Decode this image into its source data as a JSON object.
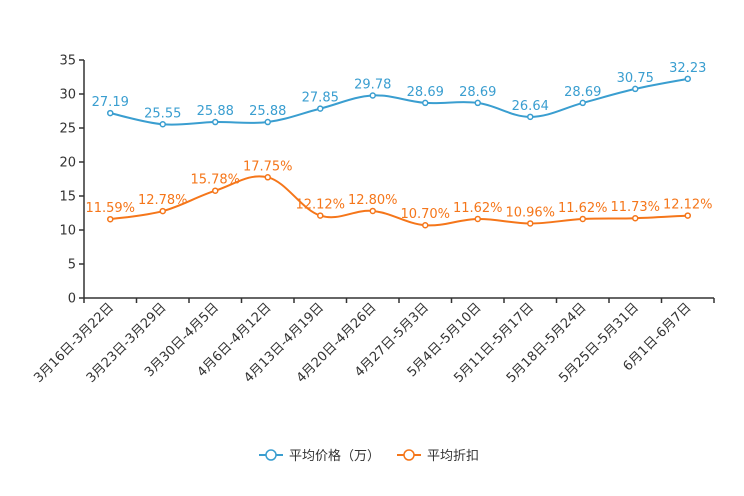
{
  "chart_data": {
    "type": "line",
    "categories": [
      "3月16日-3月22日",
      "3月23日-3月29日",
      "3月30日-4月5日",
      "4月6日-4月12日",
      "4月13日-4月19日",
      "4月20日-4月26日",
      "4月27日-5月3日",
      "5月4日-5月10日",
      "5月11日-5月17日",
      "5月18日-5月24日",
      "5月25日-5月31日",
      "6月1日-6月7日"
    ],
    "ylim": [
      0,
      35
    ],
    "yticks": [
      0,
      5,
      10,
      15,
      20,
      25,
      30,
      35
    ],
    "series": [
      {
        "name": "平均价格（万）",
        "color": "#3a9ed0",
        "values": [
          27.19,
          25.55,
          25.88,
          25.88,
          27.85,
          29.78,
          28.69,
          28.69,
          26.64,
          28.69,
          30.75,
          32.23
        ],
        "labels": [
          "27.19",
          "25.55",
          "25.88",
          "25.88",
          "27.85",
          "29.78",
          "28.69",
          "28.69",
          "26.64",
          "28.69",
          "30.75",
          "32.23"
        ]
      },
      {
        "name": "平均折扣",
        "color": "#f5761a",
        "values": [
          11.59,
          12.78,
          15.78,
          17.75,
          12.12,
          12.8,
          10.7,
          11.62,
          10.96,
          11.62,
          11.73,
          12.12
        ],
        "labels": [
          "11.59%",
          "12.78%",
          "15.78%",
          "17.75%",
          "12.12%",
          "12.80%",
          "10.70%",
          "11.62%",
          "10.96%",
          "11.62%",
          "11.73%",
          "12.12%"
        ]
      }
    ],
    "legend_position": "bottom-center",
    "grid": false
  }
}
